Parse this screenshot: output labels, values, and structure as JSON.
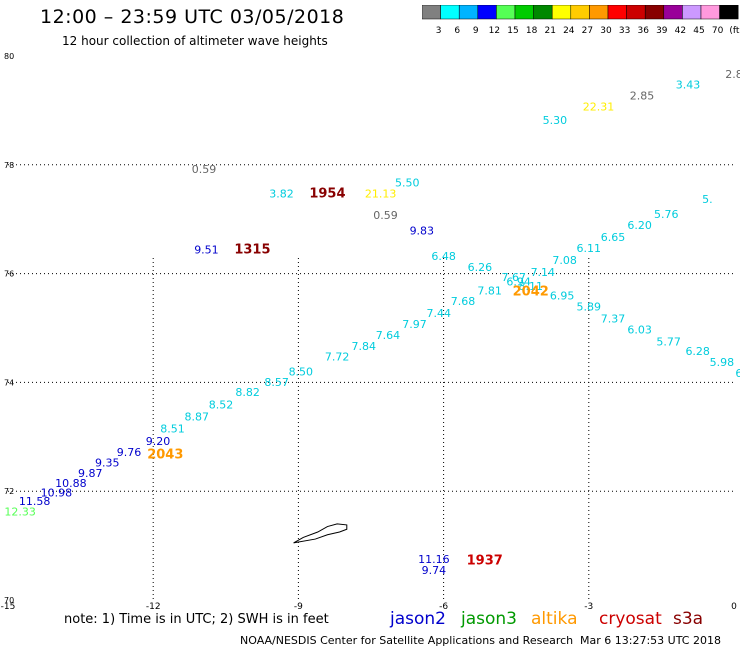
{
  "header": {
    "title": "12:00 – 23:59 UTC 03/05/2018",
    "subtitle": "12 hour collection of altimeter wave heights"
  },
  "colorbar": {
    "colors": [
      "#808080",
      "#00ffff",
      "#00b4ff",
      "#0000ff",
      "#55ff55",
      "#00cc00",
      "#008800",
      "#ffff00",
      "#ffcc00",
      "#ff9900",
      "#ff0000",
      "#cc0000",
      "#880000",
      "#990099",
      "#cc99ff",
      "#ff99dd",
      "#000000"
    ],
    "labels": [
      "3",
      "6",
      "9",
      "12",
      "15",
      "18",
      "21",
      "24",
      "27",
      "30",
      "33",
      "36",
      "39",
      "42",
      "45",
      "70",
      "(ft)"
    ]
  },
  "footer": {
    "note": "note:  1) Time is in UTC; 2) SWH is in feet",
    "legend": [
      {
        "name": "jason2",
        "color": "#0000cc"
      },
      {
        "name": "jason3",
        "color": "#009900"
      },
      {
        "name": "altika",
        "color": "#ff9900"
      },
      {
        "name": "cryosat",
        "color": "#cc0000"
      },
      {
        "name": "s3a",
        "color": "#880000"
      }
    ],
    "credit": "NOAA/NESDIS Center for Satellite Applications and Research",
    "timestamp": "Mar  6 13:27:53 UTC 2018"
  },
  "chart_data": {
    "type": "scatter",
    "xlim": [
      -15,
      0
    ],
    "ylim": [
      70,
      80
    ],
    "x_ticks": [
      -15,
      -12,
      -9,
      -6,
      -3,
      0
    ],
    "y_ticks": [
      {
        "value": 70,
        "label": "70"
      },
      {
        "value": 72,
        "label": "72"
      },
      {
        "value": 74,
        "label": "74"
      },
      {
        "value": 76,
        "label": "76"
      },
      {
        "value": 78,
        "label": "78"
      },
      {
        "value": 80,
        "label": "80"
      }
    ],
    "gridlines_x": [
      -12,
      -9,
      -6,
      -3
    ],
    "gridlines_y": [
      72,
      74,
      76
    ],
    "island_outline": [
      [
        -9.1,
        71.05
      ],
      [
        -8.9,
        71.15
      ],
      [
        -8.6,
        71.25
      ],
      [
        -8.4,
        71.35
      ],
      [
        -8.2,
        71.4
      ],
      [
        -8.0,
        71.38
      ],
      [
        -8.0,
        71.3
      ],
      [
        -8.15,
        71.25
      ],
      [
        -8.4,
        71.2
      ],
      [
        -8.65,
        71.12
      ],
      [
        -9.1,
        71.05
      ]
    ],
    "points": [
      {
        "x": -14.75,
        "y": 71.55,
        "label": "12.33",
        "color": "#55ff55"
      },
      {
        "x": -14.45,
        "y": 71.75,
        "label": "11.58",
        "color": "#0000cc"
      },
      {
        "x": -14.0,
        "y": 71.9,
        "label": "10.98",
        "color": "#0000cc"
      },
      {
        "x": -13.7,
        "y": 72.08,
        "label": "10.88",
        "color": "#0000cc"
      },
      {
        "x": -13.3,
        "y": 72.26,
        "label": "9.87",
        "color": "#0000cc"
      },
      {
        "x": -12.95,
        "y": 72.45,
        "label": "9.35",
        "color": "#0000cc"
      },
      {
        "x": -12.5,
        "y": 72.65,
        "label": "9.76",
        "color": "#0000cc"
      },
      {
        "x": -11.9,
        "y": 72.85,
        "label": "9.20",
        "color": "#0000cc"
      },
      {
        "x": -11.75,
        "y": 72.6,
        "label": "2043",
        "color": "#ff9900",
        "bold": true
      },
      {
        "x": -11.6,
        "y": 73.08,
        "label": "8.51",
        "color": "#00ccdd"
      },
      {
        "x": -11.1,
        "y": 73.3,
        "label": "8.87",
        "color": "#00ccdd"
      },
      {
        "x": -10.6,
        "y": 73.52,
        "label": "8.52",
        "color": "#00ccdd"
      },
      {
        "x": -10.05,
        "y": 73.75,
        "label": "8.82",
        "color": "#00ccdd"
      },
      {
        "x": -9.45,
        "y": 73.93,
        "label": "8.57",
        "color": "#00ccdd"
      },
      {
        "x": -8.95,
        "y": 74.13,
        "label": "8.50",
        "color": "#00ccdd"
      },
      {
        "x": -8.2,
        "y": 74.4,
        "label": "7.72",
        "color": "#00ccdd"
      },
      {
        "x": -7.65,
        "y": 74.6,
        "label": "7.84",
        "color": "#00ccdd"
      },
      {
        "x": -7.15,
        "y": 74.8,
        "label": "7.64",
        "color": "#00ccdd"
      },
      {
        "x": -6.6,
        "y": 75.0,
        "label": "7.97",
        "color": "#00ccdd"
      },
      {
        "x": -6.1,
        "y": 75.2,
        "label": "7.44",
        "color": "#00ccdd"
      },
      {
        "x": -5.6,
        "y": 75.42,
        "label": "7.68",
        "color": "#00ccdd"
      },
      {
        "x": -5.05,
        "y": 75.62,
        "label": "7.81",
        "color": "#00ccdd"
      },
      {
        "x": -4.55,
        "y": 75.86,
        "label": "7.67",
        "color": "#00ccdd"
      },
      {
        "x": -4.45,
        "y": 75.78,
        "label": "6.94",
        "color": "#00ccdd"
      },
      {
        "x": -4.2,
        "y": 75.7,
        "label": "8.11",
        "color": "#00ccdd"
      },
      {
        "x": -4.2,
        "y": 75.6,
        "label": "2042",
        "color": "#ff9900",
        "bold": true
      },
      {
        "x": -3.95,
        "y": 75.96,
        "label": "7.14",
        "color": "#00ccdd"
      },
      {
        "x": -3.5,
        "y": 76.18,
        "label": "7.08",
        "color": "#00ccdd"
      },
      {
        "x": -3.0,
        "y": 76.4,
        "label": "6.11",
        "color": "#00ccdd"
      },
      {
        "x": -2.5,
        "y": 76.6,
        "label": "6.65",
        "color": "#00ccdd"
      },
      {
        "x": -1.95,
        "y": 76.82,
        "label": "6.20",
        "color": "#00ccdd"
      },
      {
        "x": -1.4,
        "y": 77.02,
        "label": "5.76",
        "color": "#00ccdd"
      },
      {
        "x": -0.55,
        "y": 77.3,
        "label": "5.",
        "color": "#00ccdd"
      },
      {
        "x": -6.0,
        "y": 76.25,
        "label": "6.48",
        "color": "#00ccdd"
      },
      {
        "x": -5.25,
        "y": 76.05,
        "label": "6.26",
        "color": "#00ccdd"
      },
      {
        "x": -3.55,
        "y": 75.52,
        "label": "6.95",
        "color": "#00ccdd"
      },
      {
        "x": -3.0,
        "y": 75.32,
        "label": "5.89",
        "color": "#00ccdd"
      },
      {
        "x": -2.5,
        "y": 75.1,
        "label": "7.37",
        "color": "#00ccdd"
      },
      {
        "x": -1.95,
        "y": 74.9,
        "label": "6.03",
        "color": "#00ccdd"
      },
      {
        "x": -1.35,
        "y": 74.68,
        "label": "5.77",
        "color": "#00ccdd"
      },
      {
        "x": -0.75,
        "y": 74.5,
        "label": "6.28",
        "color": "#00ccdd"
      },
      {
        "x": -0.25,
        "y": 74.3,
        "label": "5.98",
        "color": "#00ccdd"
      },
      {
        "x": 0.1,
        "y": 74.1,
        "label": "6",
        "color": "#00ccdd"
      },
      {
        "x": -6.75,
        "y": 77.6,
        "label": "5.50",
        "color": "#00ccdd"
      },
      {
        "x": -9.35,
        "y": 77.4,
        "label": "3.82",
        "color": "#00ccdd"
      },
      {
        "x": -8.4,
        "y": 77.4,
        "label": "1954",
        "color": "#880000",
        "bold": true
      },
      {
        "x": -7.3,
        "y": 77.4,
        "label": "21.13",
        "color": "#ffee00"
      },
      {
        "x": -10.95,
        "y": 77.85,
        "label": "0.59",
        "color": "#666666"
      },
      {
        "x": -7.2,
        "y": 77.0,
        "label": "0.59",
        "color": "#666666"
      },
      {
        "x": -6.45,
        "y": 76.72,
        "label": "9.83",
        "color": "#0000cc"
      },
      {
        "x": -10.9,
        "y": 76.37,
        "label": "9.51",
        "color": "#0000cc"
      },
      {
        "x": -9.95,
        "y": 76.37,
        "label": "1315",
        "color": "#880000",
        "bold": true
      },
      {
        "x": -3.7,
        "y": 78.75,
        "label": "5.30",
        "color": "#00ccdd"
      },
      {
        "x": -2.8,
        "y": 79.0,
        "label": "22.31",
        "color": "#ffee00"
      },
      {
        "x": -1.9,
        "y": 79.2,
        "label": "2.85",
        "color": "#666666"
      },
      {
        "x": -0.95,
        "y": 79.4,
        "label": "3.43",
        "color": "#00ccdd"
      },
      {
        "x": 0.0,
        "y": 79.6,
        "label": "2.8",
        "color": "#666666"
      },
      {
        "x": -6.2,
        "y": 70.68,
        "label": "11.16",
        "color": "#0000cc"
      },
      {
        "x": -6.2,
        "y": 70.48,
        "label": "9.74",
        "color": "#0000cc"
      },
      {
        "x": -5.15,
        "y": 70.65,
        "label": "1937",
        "color": "#cc0000",
        "bold": true
      }
    ]
  }
}
